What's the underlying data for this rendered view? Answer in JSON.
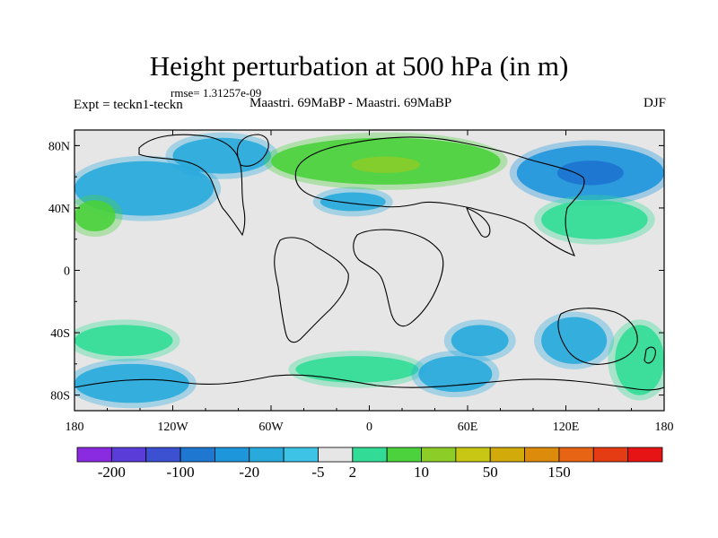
{
  "header": {
    "title": "Height perturbation at 500 hPa (in m)",
    "rmse": "rmse= 1.31257e-09",
    "expt": "Expt = teckn1-teckn",
    "center_label": "Maastri.  69MaBP - Maastri.  69MaBP",
    "season": "DJF"
  },
  "map": {
    "lat_ticks": [
      "80N",
      "40N",
      "0",
      "40S",
      "80S"
    ],
    "lon_ticks": [
      "180",
      "120W",
      "60W",
      "0",
      "60E",
      "120E",
      "180"
    ],
    "background_color": "#e6e6e6"
  },
  "colorbar": {
    "colors": [
      "#8a2be2",
      "#5a3cd8",
      "#3c50d2",
      "#1e78d2",
      "#1e96dc",
      "#28aadc",
      "#3cc3e6",
      "#e6e6e6",
      "#32dc96",
      "#4bd23c",
      "#8ccd28",
      "#c8c814",
      "#d2aa0a",
      "#dc8c0a",
      "#e66414",
      "#e63c14",
      "#e61414"
    ],
    "labels": [
      "-200",
      "-100",
      "-20",
      "-5",
      "2",
      "10",
      "50",
      "150"
    ]
  },
  "chart_data": {
    "type": "heatmap",
    "title": "Height perturbation at 500 hPa (in m)",
    "xlabel": "",
    "ylabel": "",
    "x_range": [
      -180,
      180
    ],
    "y_range": [
      -90,
      90
    ],
    "x_ticks": [
      "180",
      "120W",
      "60W",
      "0",
      "60E",
      "120E",
      "180"
    ],
    "y_ticks": [
      "80N",
      "40N",
      "0",
      "40S",
      "80S"
    ],
    "levels": [
      -200,
      -100,
      -20,
      -5,
      2,
      10,
      50,
      150
    ],
    "anomaly_regions": [
      {
        "lon": [
          -180,
          -95
        ],
        "lat": [
          35,
          70
        ],
        "sign": "negative",
        "level": -5
      },
      {
        "lon": [
          -120,
          -60
        ],
        "lat": [
          62,
          85
        ],
        "sign": "negative",
        "level": -5
      },
      {
        "lon": [
          -30,
          10
        ],
        "lat": [
          38,
          50
        ],
        "sign": "negative",
        "level": -5
      },
      {
        "lon": [
          -60,
          80
        ],
        "lat": [
          55,
          85
        ],
        "sign": "positive",
        "level": 10
      },
      {
        "lon": [
          90,
          180
        ],
        "lat": [
          45,
          80
        ],
        "sign": "negative",
        "level": -20
      },
      {
        "lon": [
          -180,
          -155
        ],
        "lat": [
          25,
          45
        ],
        "sign": "positive",
        "level": 10
      },
      {
        "lon": [
          105,
          170
        ],
        "lat": [
          20,
          45
        ],
        "sign": "positive",
        "level": 2
      },
      {
        "lon": [
          -180,
          -120
        ],
        "lat": [
          -35,
          -55
        ],
        "sign": "positive",
        "level": 2
      },
      {
        "lon": [
          -45,
          30
        ],
        "lat": [
          -55,
          -72
        ],
        "sign": "positive",
        "level": 2
      },
      {
        "lon": [
          -180,
          -110
        ],
        "lat": [
          -60,
          -85
        ],
        "sign": "negative",
        "level": -5
      },
      {
        "lon": [
          30,
          75
        ],
        "lat": [
          -55,
          -78
        ],
        "sign": "negative",
        "level": -5
      },
      {
        "lon": [
          50,
          85
        ],
        "lat": [
          -35,
          -55
        ],
        "sign": "negative",
        "level": -5
      },
      {
        "lon": [
          105,
          145
        ],
        "lat": [
          -30,
          -60
        ],
        "sign": "negative",
        "level": -5
      },
      {
        "lon": [
          150,
          180
        ],
        "lat": [
          -35,
          -80
        ],
        "sign": "positive",
        "level": 2
      }
    ]
  }
}
